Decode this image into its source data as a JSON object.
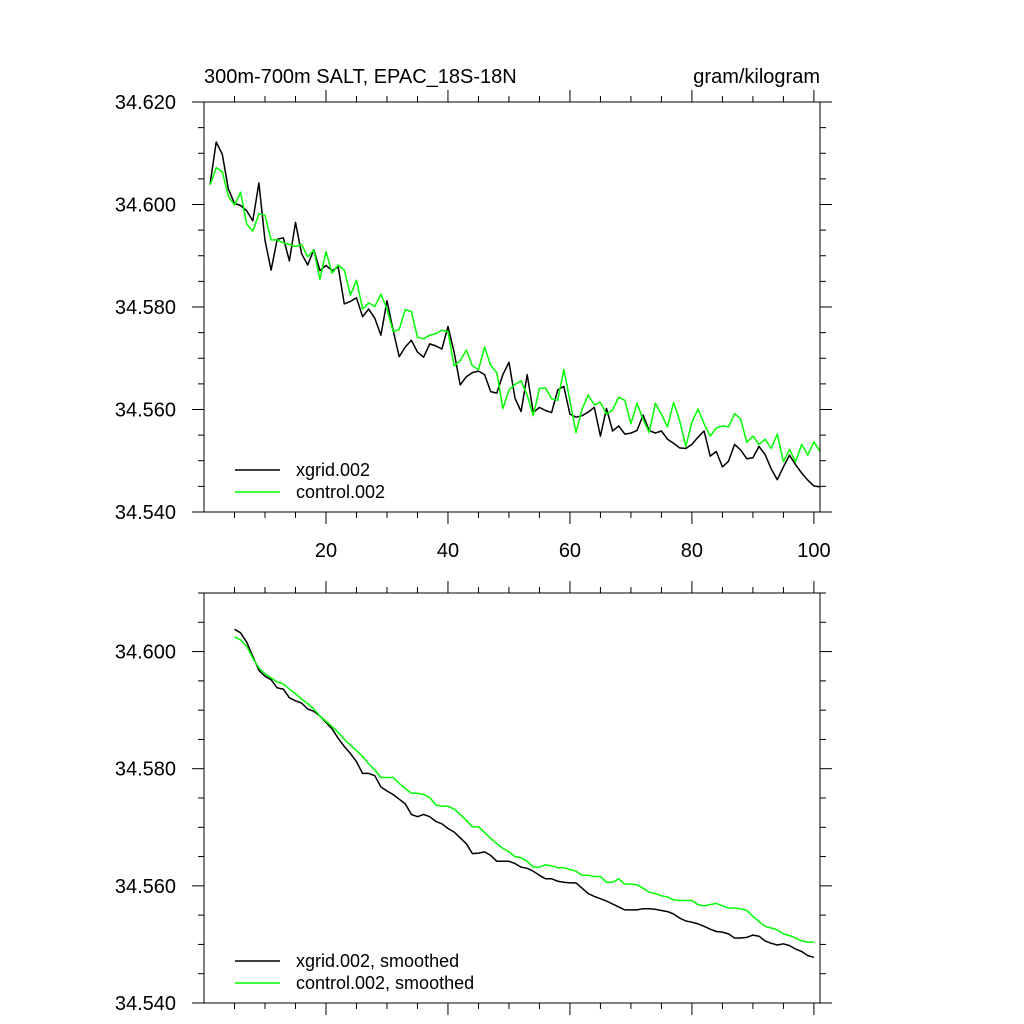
{
  "colors": {
    "xgrid": "#000000",
    "control": "#00ff00",
    "axis": "#000000",
    "background": "#ffffff"
  },
  "chart_data": [
    {
      "type": "line",
      "title": "300m-700m SALT, EPAC_18S-18N",
      "units": "gram/kilogram",
      "xlabel": "",
      "ylabel": "",
      "xlim": [
        0,
        101
      ],
      "ylim": [
        34.54,
        34.62
      ],
      "xticks": [
        20,
        40,
        60,
        80,
        100
      ],
      "xtick_labels": [
        "20",
        "40",
        "60",
        "80",
        "100"
      ],
      "yticks": [
        34.54,
        34.56,
        34.58,
        34.6,
        34.62
      ],
      "ytick_labels": [
        "34.540",
        "34.560",
        "34.580",
        "34.600",
        "34.620"
      ],
      "legend_position": "bottom-left",
      "x": [
        1,
        2,
        3,
        4,
        5,
        6,
        7,
        8,
        9,
        10,
        11,
        12,
        13,
        14,
        15,
        16,
        17,
        18,
        19,
        20,
        21,
        22,
        23,
        24,
        25,
        26,
        27,
        28,
        29,
        30,
        31,
        32,
        33,
        34,
        35,
        36,
        37,
        38,
        39,
        40,
        41,
        42,
        43,
        44,
        45,
        46,
        47,
        48,
        49,
        50,
        51,
        52,
        53,
        54,
        55,
        56,
        57,
        58,
        59,
        60,
        61,
        62,
        63,
        64,
        65,
        66,
        67,
        68,
        69,
        70,
        71,
        72,
        73,
        74,
        75,
        76,
        77,
        78,
        79,
        80,
        81,
        82,
        83,
        84,
        85,
        86,
        87,
        88,
        89,
        90,
        91,
        92,
        93,
        94,
        95,
        96,
        97,
        98,
        99,
        100,
        101
      ],
      "series": [
        {
          "name": "xgrid.002",
          "color": "#000000",
          "values": [
            34.604,
            34.6122,
            34.6098,
            34.603,
            34.6002,
            34.5998,
            34.5988,
            34.5968,
            34.6042,
            34.593,
            34.5872,
            34.5932,
            34.5935,
            34.589,
            34.5965,
            34.5904,
            34.5882,
            34.5912,
            34.5871,
            34.5881,
            34.5871,
            34.5878,
            34.5806,
            34.5811,
            34.5818,
            34.5781,
            34.5796,
            34.5778,
            34.5745,
            34.5812,
            34.5755,
            34.5703,
            34.5722,
            34.5735,
            34.5712,
            34.5702,
            34.5728,
            34.5724,
            34.5718,
            34.5762,
            34.5712,
            34.5648,
            34.5664,
            34.5672,
            34.5675,
            34.5668,
            34.5635,
            34.5632,
            34.5668,
            34.5692,
            34.5622,
            34.5596,
            34.5668,
            34.5594,
            34.5604,
            34.5598,
            34.5594,
            34.5638,
            34.5645,
            34.5591,
            34.5585,
            34.5588,
            34.5595,
            34.5604,
            34.5548,
            34.5602,
            34.5558,
            34.5568,
            34.5552,
            34.5554,
            34.5559,
            34.5589,
            34.5559,
            34.5554,
            34.5558,
            34.5542,
            34.5534,
            34.5525,
            34.5524,
            34.5532,
            34.5546,
            34.5558,
            34.5509,
            34.5518,
            34.5488,
            34.5499,
            34.5532,
            34.5521,
            34.5504,
            34.5506,
            34.5528,
            34.5512,
            34.5484,
            34.5463,
            34.5488,
            34.5511,
            34.5492,
            34.5476,
            34.5462,
            34.5451,
            34.5449
          ]
        },
        {
          "name": "control.002",
          "color": "#00ff00",
          "values": [
            34.6038,
            34.6072,
            34.6064,
            34.6016,
            34.5999,
            34.6024,
            34.5962,
            34.5948,
            34.5982,
            34.5979,
            34.5931,
            34.5931,
            34.5925,
            34.5922,
            34.5918,
            34.5922,
            34.5898,
            34.5911,
            34.5854,
            34.5908,
            34.5866,
            34.5882,
            34.5872,
            34.5823,
            34.5852,
            34.5796,
            34.5808,
            34.5801,
            34.5825,
            34.5796,
            34.5752,
            34.5756,
            34.5795,
            34.5791,
            34.5741,
            34.5738,
            34.5745,
            34.5748,
            34.5755,
            34.5752,
            34.5685,
            34.5695,
            34.5716,
            34.5685,
            34.5678,
            34.5722,
            34.5686,
            34.5672,
            34.5602,
            34.5638,
            34.5649,
            34.5656,
            34.5628,
            34.5588,
            34.5641,
            34.5642,
            34.5621,
            34.5618,
            34.5678,
            34.5618,
            34.5555,
            34.5601,
            34.5628,
            34.5609,
            34.5614,
            34.5591,
            34.5599,
            34.5624,
            34.5618,
            34.5572,
            34.5612,
            34.5581,
            34.5555,
            34.5612,
            34.5591,
            34.5566,
            34.5614,
            34.5578,
            34.5528,
            34.5575,
            34.5601,
            34.5572,
            34.5548,
            34.5564,
            34.5568,
            34.5566,
            34.5592,
            34.5581,
            34.5536,
            34.5548,
            34.5532,
            34.5542,
            34.5524,
            34.5552,
            34.5498,
            34.5522,
            34.5498,
            34.5532,
            34.5511,
            34.5537,
            34.5518
          ]
        }
      ]
    },
    {
      "type": "line",
      "title": "",
      "xlabel": "",
      "ylabel": "",
      "xlim": [
        0,
        101
      ],
      "ylim": [
        34.54,
        34.61
      ],
      "xticks": [
        20,
        40,
        60,
        80,
        100
      ],
      "yticks": [
        34.54,
        34.56,
        34.58,
        34.6
      ],
      "ytick_labels": [
        "34.540",
        "34.560",
        "34.580",
        "34.600"
      ],
      "legend_position": "bottom-left",
      "x": [
        5,
        6,
        7,
        8,
        9,
        10,
        11,
        12,
        13,
        14,
        15,
        16,
        17,
        18,
        19,
        20,
        21,
        22,
        23,
        24,
        25,
        26,
        27,
        28,
        29,
        30,
        31,
        32,
        33,
        34,
        35,
        36,
        37,
        38,
        39,
        40,
        41,
        42,
        43,
        44,
        45,
        46,
        47,
        48,
        49,
        50,
        51,
        52,
        53,
        54,
        55,
        56,
        57,
        58,
        59,
        60,
        61,
        62,
        63,
        64,
        65,
        66,
        67,
        68,
        69,
        70,
        71,
        72,
        73,
        74,
        75,
        76,
        77,
        78,
        79,
        80,
        81,
        82,
        83,
        84,
        85,
        86,
        87,
        88,
        89,
        90,
        91,
        92,
        93,
        94,
        95,
        96,
        97,
        98,
        99,
        100
      ],
      "series": [
        {
          "name": "xgrid.002, smoothed",
          "color": "#000000",
          "values": [
            34.6038,
            34.6032,
            34.6016,
            34.5992,
            34.5968,
            34.5958,
            34.5952,
            34.5938,
            34.5936,
            34.5921,
            34.5916,
            34.5912,
            34.5902,
            34.5898,
            34.589,
            34.5879,
            34.5868,
            34.5852,
            34.5838,
            34.5826,
            34.5812,
            34.5792,
            34.5792,
            34.5788,
            34.5769,
            34.5762,
            34.5756,
            34.5748,
            34.574,
            34.5722,
            34.5718,
            34.5722,
            34.5718,
            34.571,
            34.5706,
            34.5698,
            34.5692,
            34.5682,
            34.5672,
            34.5655,
            34.5656,
            34.5658,
            34.5652,
            34.5642,
            34.5642,
            34.5642,
            34.5638,
            34.5632,
            34.563,
            34.5625,
            34.5618,
            34.5612,
            34.5612,
            34.5608,
            34.5606,
            34.5605,
            34.5605,
            34.5596,
            34.5587,
            34.5582,
            34.5578,
            34.5574,
            34.5569,
            34.5564,
            34.5559,
            34.5559,
            34.5559,
            34.5561,
            34.5561,
            34.556,
            34.5558,
            34.5556,
            34.5552,
            34.5545,
            34.554,
            34.5538,
            34.5535,
            34.5531,
            34.5526,
            34.5522,
            34.5521,
            34.5518,
            34.5511,
            34.5511,
            34.5512,
            34.5516,
            34.5514,
            34.5506,
            34.5502,
            34.5499,
            34.5501,
            34.5498,
            34.5492,
            34.5488,
            34.5481,
            34.5478
          ]
        },
        {
          "name": "control.002, smoothed",
          "color": "#00ff00",
          "values": [
            34.6025,
            34.602,
            34.6009,
            34.5989,
            34.5972,
            34.5962,
            34.5955,
            34.5948,
            34.5945,
            34.5936,
            34.5928,
            34.5919,
            34.5911,
            34.5902,
            34.589,
            34.5881,
            34.5872,
            34.5862,
            34.585,
            34.584,
            34.5831,
            34.5821,
            34.5808,
            34.5798,
            34.5785,
            34.5785,
            34.5785,
            34.5775,
            34.5766,
            34.5758,
            34.5758,
            34.5756,
            34.5751,
            34.5738,
            34.5736,
            34.5736,
            34.5731,
            34.5722,
            34.5712,
            34.5701,
            34.5701,
            34.5691,
            34.5681,
            34.5672,
            34.5664,
            34.5658,
            34.565,
            34.5648,
            34.5642,
            34.5632,
            34.5632,
            34.5636,
            34.5634,
            34.5631,
            34.5631,
            34.5628,
            34.5625,
            34.5618,
            34.5618,
            34.5616,
            34.5616,
            34.5606,
            34.5606,
            34.5612,
            34.5603,
            34.5603,
            34.5602,
            34.5596,
            34.5589,
            34.5587,
            34.5583,
            34.5581,
            34.5576,
            34.5575,
            34.5575,
            34.5575,
            34.5568,
            34.5566,
            34.5568,
            34.557,
            34.5566,
            34.5562,
            34.5562,
            34.5561,
            34.5558,
            34.5548,
            34.5539,
            34.5531,
            34.5528,
            34.5525,
            34.5518,
            34.5515,
            34.5511,
            34.5506,
            34.5504,
            34.5504
          ]
        }
      ]
    }
  ]
}
